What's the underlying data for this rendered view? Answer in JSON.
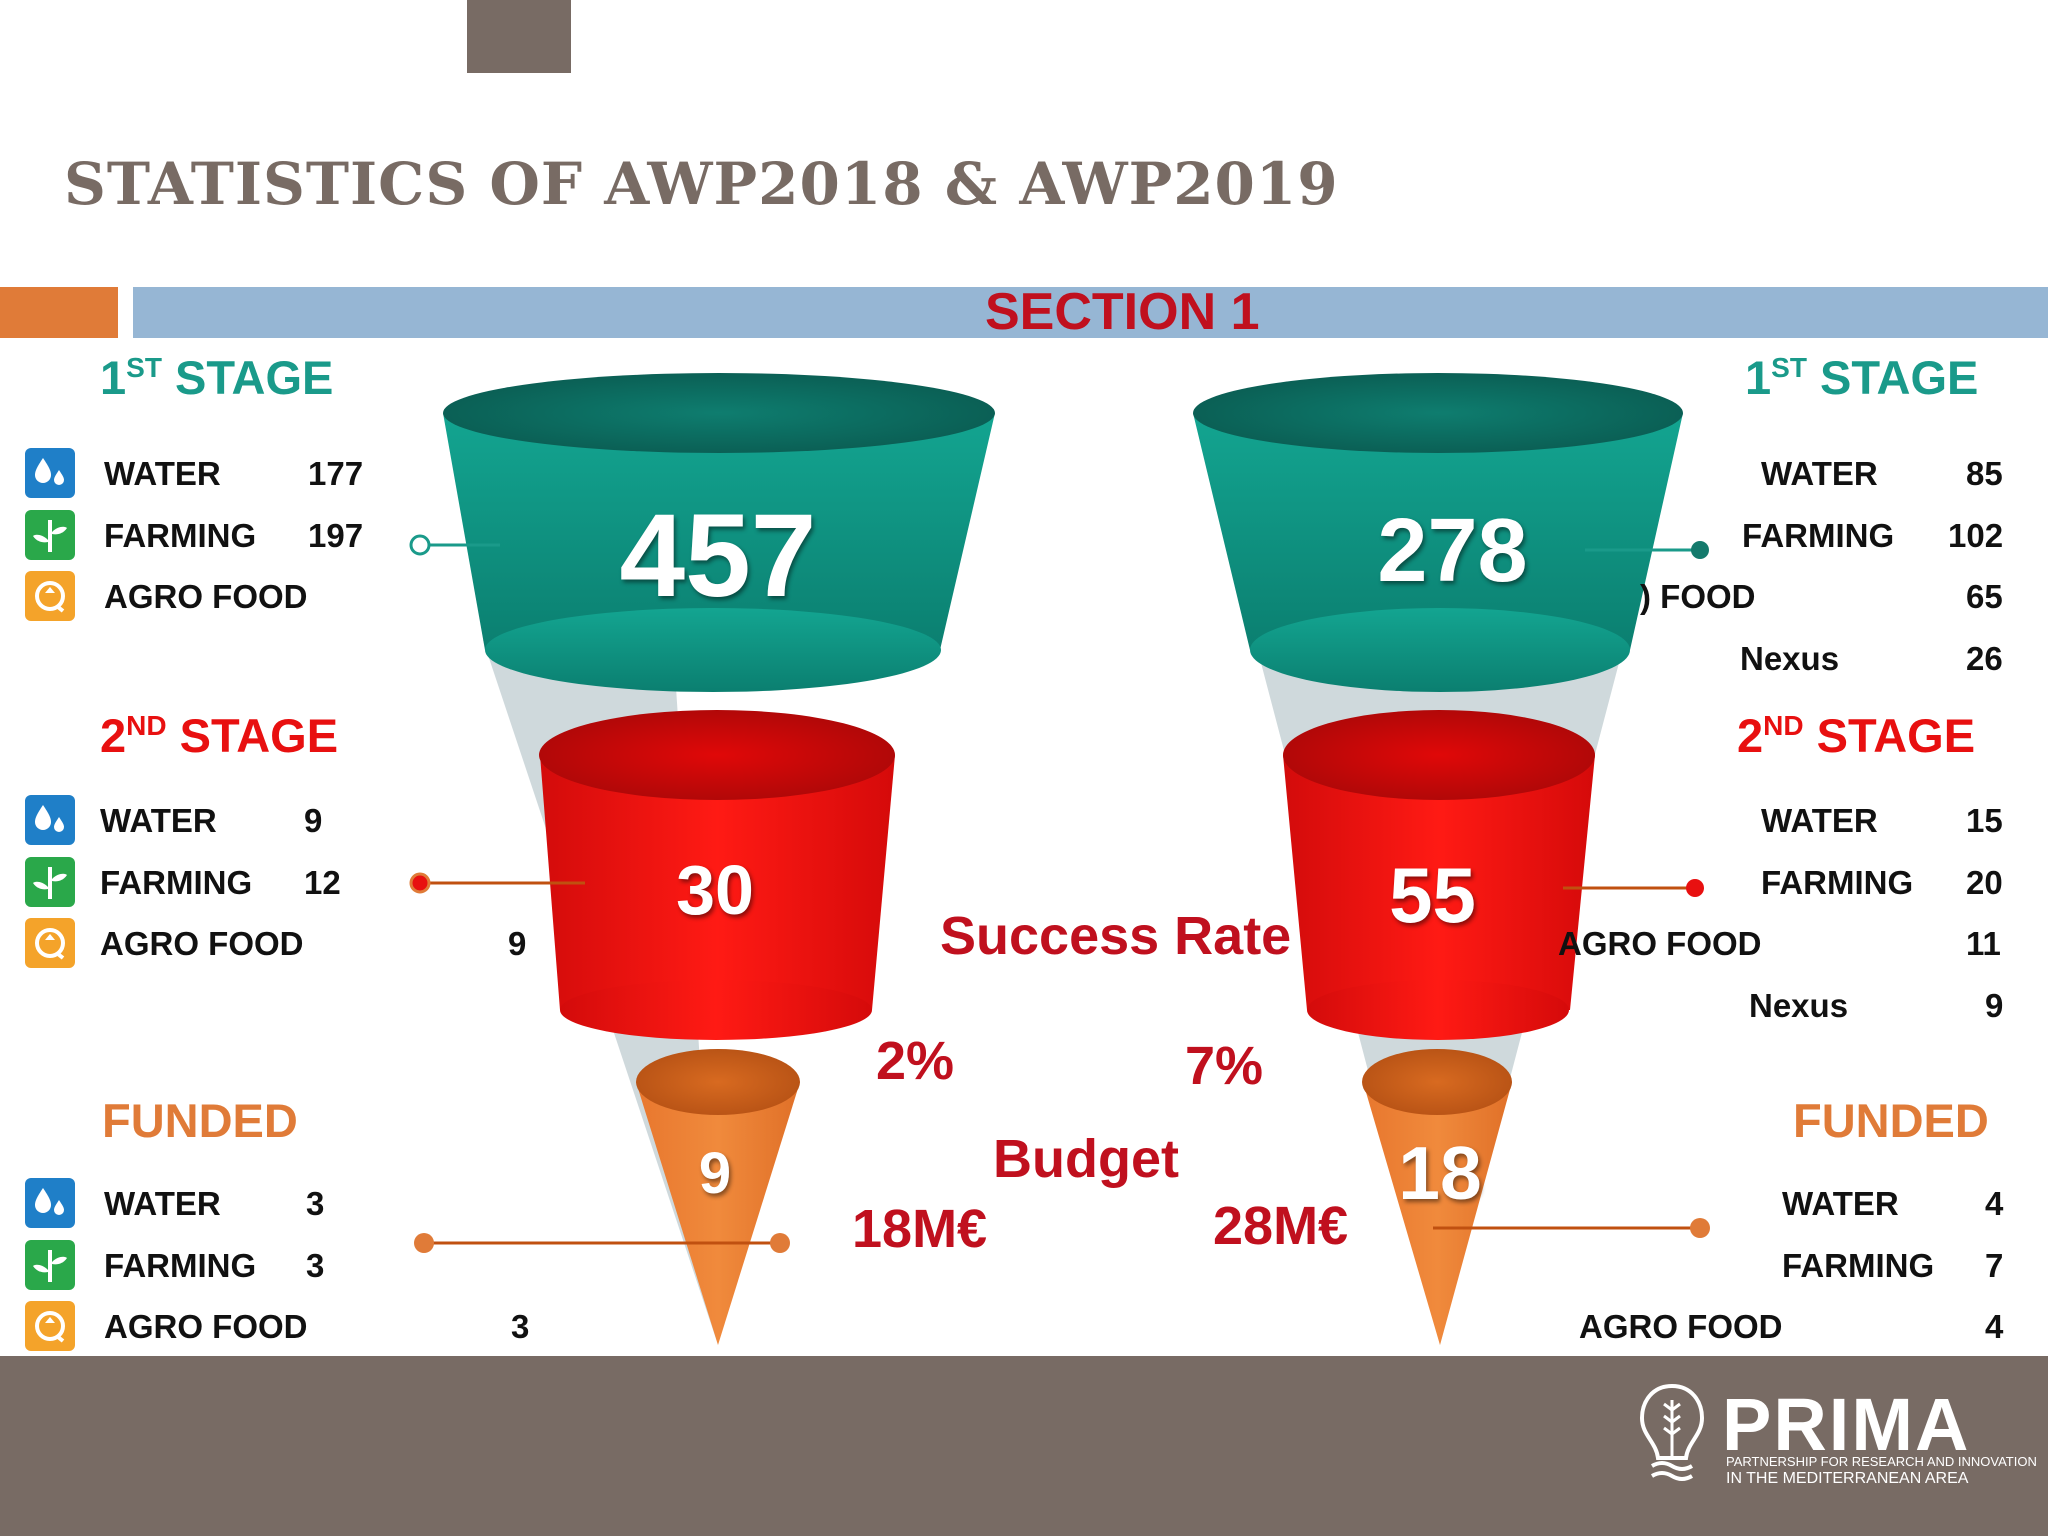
{
  "title": "STATISTICS OF AWP2018 & AWP2019",
  "section": "SECTION 1",
  "left": {
    "stage1": {
      "label": "1",
      "sup": "ST",
      "rest": " STAGE",
      "rows": [
        {
          "name": "WATER",
          "value": "177"
        },
        {
          "name": "FARMING",
          "value": "197"
        },
        {
          "name": "AGRO FOOD",
          "value": ""
        }
      ]
    },
    "stage2": {
      "label": "2",
      "sup": "ND",
      "rest": " STAGE",
      "rows": [
        {
          "name": "WATER",
          "value": "9"
        },
        {
          "name": "FARMING",
          "value": "12"
        },
        {
          "name": "AGRO FOOD",
          "value": "9"
        }
      ]
    },
    "funded": {
      "label": "FUNDED",
      "rows": [
        {
          "name": "WATER",
          "value": "3"
        },
        {
          "name": "FARMING",
          "value": "3"
        },
        {
          "name": "AGRO FOOD",
          "value": "3"
        }
      ]
    },
    "funnel": {
      "top": "457",
      "mid": "30",
      "bottom": "9"
    }
  },
  "right": {
    "stage1": {
      "label": "1",
      "sup": "ST",
      "rest": " STAGE",
      "rows": [
        {
          "name": "WATER",
          "value": "85"
        },
        {
          "name": "FARMING",
          "value": "102"
        },
        {
          "name": ") FOOD",
          "value": "65"
        },
        {
          "name": "Nexus",
          "value": "26"
        }
      ]
    },
    "stage2": {
      "label": "2",
      "sup": "ND",
      "rest": " STAGE",
      "rows": [
        {
          "name": "WATER",
          "value": "15"
        },
        {
          "name": "FARMING",
          "value": "20"
        },
        {
          "name": "AGRO FOOD",
          "value": "11"
        },
        {
          "name": "Nexus",
          "value": "9"
        }
      ]
    },
    "funded": {
      "label": "FUNDED",
      "rows": [
        {
          "name": "WATER",
          "value": "4"
        },
        {
          "name": "FARMING",
          "value": "7"
        },
        {
          "name": "AGRO FOOD",
          "value": "4"
        }
      ]
    },
    "funnel": {
      "top": "278",
      "mid": "55",
      "bottom": "18"
    }
  },
  "success_rate": {
    "label": "Success Rate",
    "left": "2%",
    "right": "7%"
  },
  "budget": {
    "label": "Budget",
    "left": "18M€",
    "right": "28M€"
  },
  "logo": {
    "name": "PRIMA",
    "tagline1": "PARTNERSHIP FOR RESEARCH AND INNOVATION",
    "tagline2": "IN THE MEDITERRANEAN AREA"
  },
  "colors": {
    "teal": "#1a9a8a",
    "red": "#e81010",
    "orange": "#e07b38",
    "dark_red": "#c0101e",
    "brown": "#786b64",
    "blue_bar": "#96b6d4"
  },
  "icons": [
    "water-icon",
    "farming-icon",
    "agro-food-icon"
  ]
}
